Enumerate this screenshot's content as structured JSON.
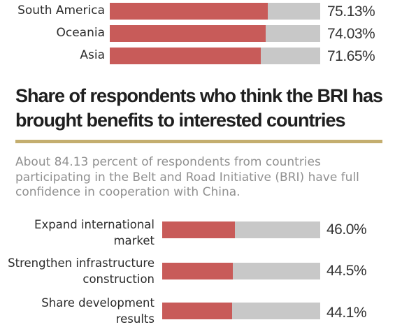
{
  "chart_data": [
    {
      "type": "bar",
      "categories": [
        "South America",
        "Oceania",
        "Asia"
      ],
      "values": [
        75.13,
        74.03,
        71.65
      ],
      "value_labels": [
        "75.13%",
        "74.03%",
        "71.65%"
      ],
      "xlim": [
        0,
        100
      ],
      "colors": {
        "fill": "#c85b59",
        "track": "#c8c8c8"
      }
    },
    {
      "type": "bar",
      "title": "Share of respondents who think the BRI has brought benefits to interested countries",
      "subtitle": "About 84.13 percent of respondents from countries participating in the Belt and Road Initiative (BRI) have full confidence in cooperation with China.",
      "categories": [
        "Expand international market",
        "Strengthen infrastructure construction",
        "Share development results"
      ],
      "values": [
        46.0,
        44.5,
        44.1
      ],
      "value_labels": [
        "46.0%",
        "44.5%",
        "44.1%"
      ],
      "xlim": [
        0,
        100
      ],
      "colors": {
        "fill": "#c85b59",
        "track": "#c8c8c8",
        "rule": "#c4ae6f"
      }
    }
  ]
}
